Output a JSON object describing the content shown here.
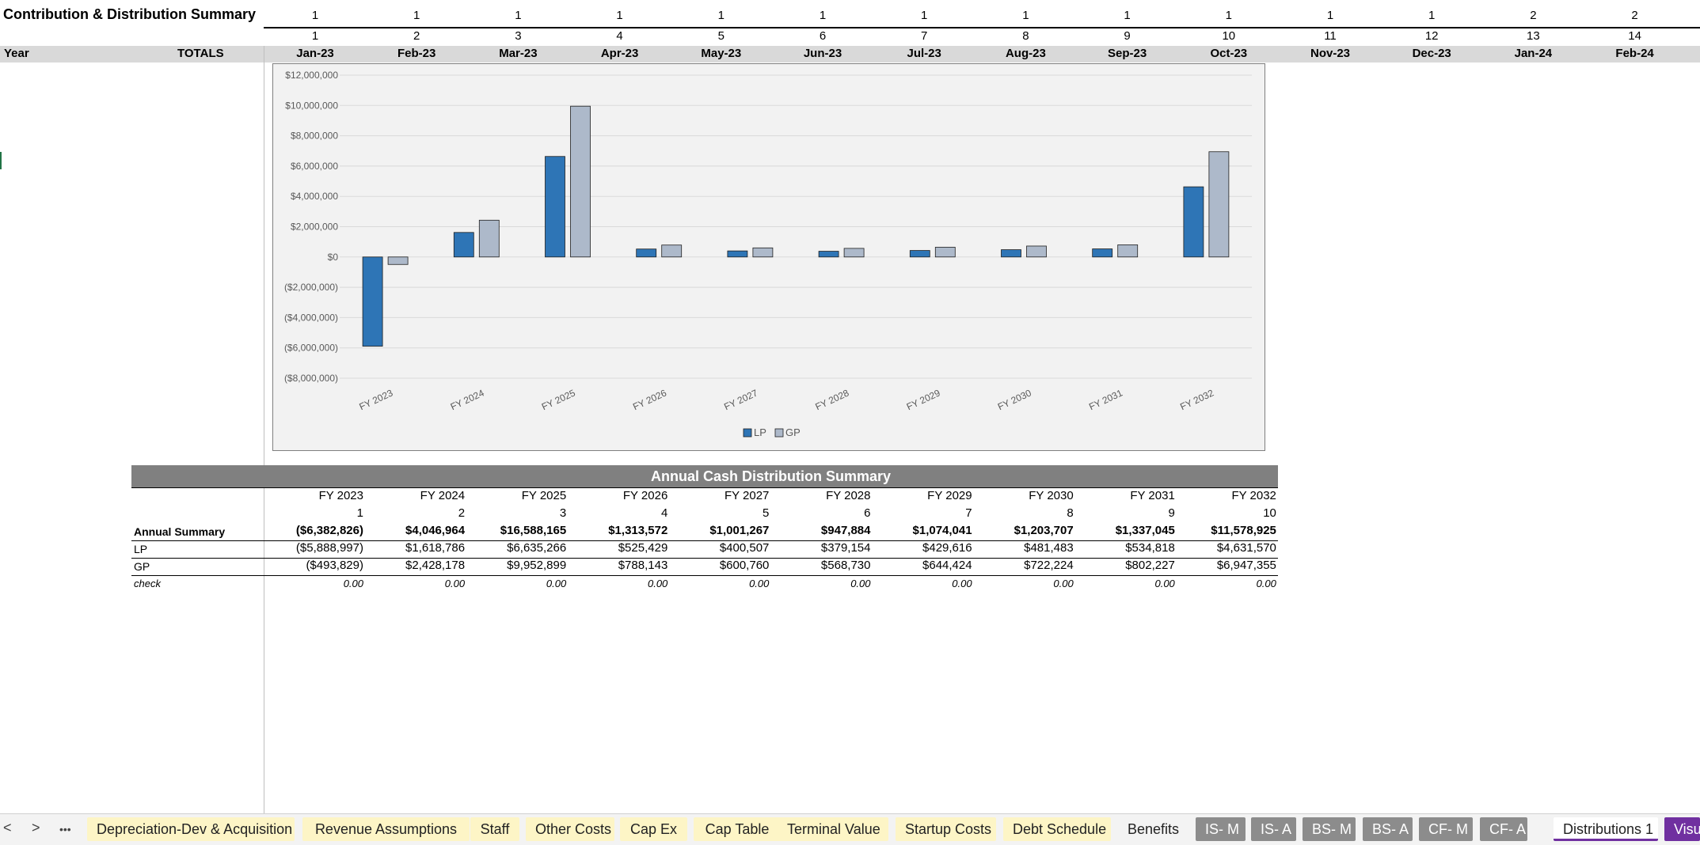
{
  "sheet": {
    "title": "Contribution & Distribution Summary",
    "year_label": "Year",
    "totals_label": "TOTALS",
    "year_row": [
      "1",
      "1",
      "1",
      "1",
      "1",
      "1",
      "1",
      "1",
      "1",
      "1",
      "1",
      "1",
      "2",
      "2"
    ],
    "period_row": [
      "1",
      "2",
      "3",
      "4",
      "5",
      "6",
      "7",
      "8",
      "9",
      "10",
      "11",
      "12",
      "13",
      "14"
    ],
    "months": [
      "Jan-23",
      "Feb-23",
      "Mar-23",
      "Apr-23",
      "May-23",
      "Jun-23",
      "Jul-23",
      "Aug-23",
      "Sep-23",
      "Oct-23",
      "Nov-23",
      "Dec-23",
      "Jan-24",
      "Feb-24"
    ]
  },
  "chart_data": {
    "type": "bar",
    "categories": [
      "FY 2023",
      "FY 2024",
      "FY 2025",
      "FY 2026",
      "FY 2027",
      "FY 2028",
      "FY 2029",
      "FY 2030",
      "FY 2031",
      "FY 2032"
    ],
    "series": [
      {
        "name": "LP",
        "color": "#2e75b6",
        "values": [
          -5888997,
          1618786,
          6635266,
          525429,
          400507,
          379154,
          429616,
          481483,
          534818,
          4631570
        ]
      },
      {
        "name": "GP",
        "color": "#adb9ca",
        "values": [
          -493829,
          2428178,
          9952899,
          788143,
          600760,
          568730,
          644424,
          722224,
          802227,
          6947355
        ]
      }
    ],
    "y_ticks": [
      "$12,000,000",
      "$10,000,000",
      "$8,000,000",
      "$6,000,000",
      "$4,000,000",
      "$2,000,000",
      "$0",
      "($2,000,000)",
      "($4,000,000)",
      "($6,000,000)",
      "($8,000,000)"
    ],
    "ylim": [
      -8000000,
      12000000
    ],
    "grid": true,
    "legend": "bottom"
  },
  "table": {
    "title": "Annual Cash Distribution Summary",
    "years": [
      "FY 2023",
      "FY 2024",
      "FY 2025",
      "FY 2026",
      "FY 2027",
      "FY 2028",
      "FY 2029",
      "FY 2030",
      "FY 2031",
      "FY 2032"
    ],
    "indices": [
      "1",
      "2",
      "3",
      "4",
      "5",
      "6",
      "7",
      "8",
      "9",
      "10"
    ],
    "rows": [
      {
        "label": "Annual Summary",
        "style": "bold",
        "values": [
          "($6,382,826)",
          "$4,046,964",
          "$16,588,165",
          "$1,313,572",
          "$1,001,267",
          "$947,884",
          "$1,074,041",
          "$1,203,707",
          "$1,337,045",
          "$11,578,925"
        ]
      },
      {
        "label": "LP",
        "style": "normal",
        "values": [
          "($5,888,997)",
          "$1,618,786",
          "$6,635,266",
          "$525,429",
          "$400,507",
          "$379,154",
          "$429,616",
          "$481,483",
          "$534,818",
          "$4,631,570"
        ]
      },
      {
        "label": "GP",
        "style": "normal",
        "values": [
          "($493,829)",
          "$2,428,178",
          "$9,952,899",
          "$788,143",
          "$600,760",
          "$568,730",
          "$644,424",
          "$722,224",
          "$802,227",
          "$6,947,355"
        ]
      },
      {
        "label": "check",
        "style": "italic",
        "values": [
          "0.00",
          "0.00",
          "0.00",
          "0.00",
          "0.00",
          "0.00",
          "0.00",
          "0.00",
          "0.00",
          "0.00"
        ]
      }
    ]
  },
  "tabs": {
    "nav_prev": "<",
    "nav_next": ">",
    "nav_more": "•••",
    "items": [
      {
        "label": "Depreciation-Dev & Acquisition",
        "style": "yellow"
      },
      {
        "label": "Revenue Assumptions",
        "style": "yellow"
      },
      {
        "label": "Staff",
        "style": "yellow"
      },
      {
        "label": "Other Costs",
        "style": "yellow"
      },
      {
        "label": "Cap Ex",
        "style": "yellow"
      },
      {
        "label": "Cap Table",
        "style": "yellow"
      },
      {
        "label": "Terminal Value",
        "style": "yellow"
      },
      {
        "label": "Startup Costs",
        "style": "yellow"
      },
      {
        "label": "Debt Schedule",
        "style": "yellow"
      },
      {
        "label": "Benefits",
        "style": "plain"
      },
      {
        "label": "IS- M",
        "style": "grey"
      },
      {
        "label": "IS- A",
        "style": "grey"
      },
      {
        "label": "BS- M",
        "style": "grey"
      },
      {
        "label": "BS- A",
        "style": "grey"
      },
      {
        "label": "CF- M",
        "style": "grey"
      },
      {
        "label": "CF- A",
        "style": "grey"
      },
      {
        "label": "Distributions 1",
        "style": "active"
      },
      {
        "label": "Visu",
        "style": "purple"
      }
    ]
  }
}
